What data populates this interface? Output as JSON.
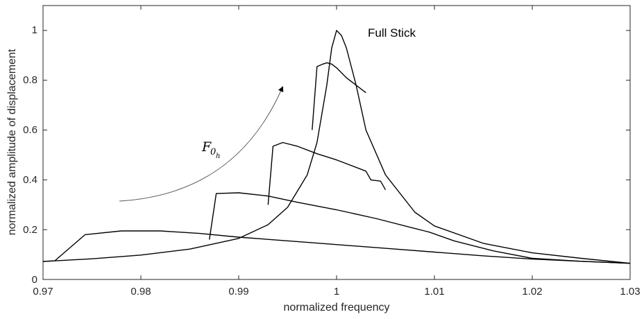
{
  "chart_data": {
    "type": "line",
    "title": "",
    "xlabel": "normalized frequency",
    "ylabel": "normalized amplitude of displacement",
    "xlim": [
      0.97,
      1.03
    ],
    "ylim": [
      0,
      1.1
    ],
    "grid": false,
    "x_ticks": [
      "0.97",
      "0.98",
      "0.99",
      "1",
      "1.01",
      "1.02",
      "1.03"
    ],
    "y_ticks": [
      "0",
      "0.2",
      "0.4",
      "0.6",
      "0.8",
      "1"
    ],
    "annotations": {
      "full_stick": "Full Stick",
      "force_main": "F",
      "force_sub": "0",
      "force_subsub": "h"
    },
    "series": [
      {
        "x": [
          0.97,
          0.975,
          0.98,
          0.985,
          0.99,
          0.993,
          0.995,
          0.997,
          0.998,
          0.999,
          0.9995,
          1.0,
          1.0005,
          1.001,
          1.002,
          1.003,
          1.005,
          1.008,
          1.01,
          1.015,
          1.02,
          1.025,
          1.03
        ],
        "values": [
          0.072,
          0.083,
          0.098,
          0.122,
          0.165,
          0.22,
          0.29,
          0.42,
          0.55,
          0.78,
          0.93,
          1.0,
          0.98,
          0.93,
          0.78,
          0.6,
          0.42,
          0.27,
          0.215,
          0.145,
          0.107,
          0.085,
          0.065
        ]
      },
      {
        "x": [
          0.97,
          0.9712,
          0.9743,
          0.978,
          0.982,
          0.986,
          0.99,
          0.995,
          1.0,
          1.005,
          1.01,
          1.015,
          1.02,
          1.025,
          1.03
        ],
        "values": [
          0.072,
          0.075,
          0.18,
          0.195,
          0.195,
          0.185,
          0.17,
          0.155,
          0.14,
          0.125,
          0.11,
          0.095,
          0.082,
          0.073,
          0.065
        ]
      },
      {
        "x": [
          0.987,
          0.9877,
          0.99,
          0.993,
          0.996,
          1.0,
          1.004,
          1.008,
          1.009,
          1.0095,
          1.012,
          1.016,
          1.02,
          1.025,
          1.03
        ],
        "values": [
          0.16,
          0.345,
          0.348,
          0.335,
          0.31,
          0.28,
          0.245,
          0.205,
          0.195,
          0.19,
          0.155,
          0.115,
          0.085,
          0.073,
          0.065
        ]
      },
      {
        "x": [
          0.993,
          0.9935,
          0.9945,
          0.996,
          0.998,
          1.0,
          1.003,
          1.0035,
          1.0045,
          1.005
        ],
        "values": [
          0.3,
          0.535,
          0.55,
          0.535,
          0.505,
          0.48,
          0.435,
          0.4,
          0.395,
          0.36
        ]
      },
      {
        "x": [
          0.9975,
          0.998,
          0.9986,
          0.999,
          0.9995,
          1.0,
          1.001,
          1.003
        ],
        "values": [
          0.6,
          0.855,
          0.865,
          0.87,
          0.865,
          0.85,
          0.81,
          0.75
        ]
      }
    ]
  }
}
